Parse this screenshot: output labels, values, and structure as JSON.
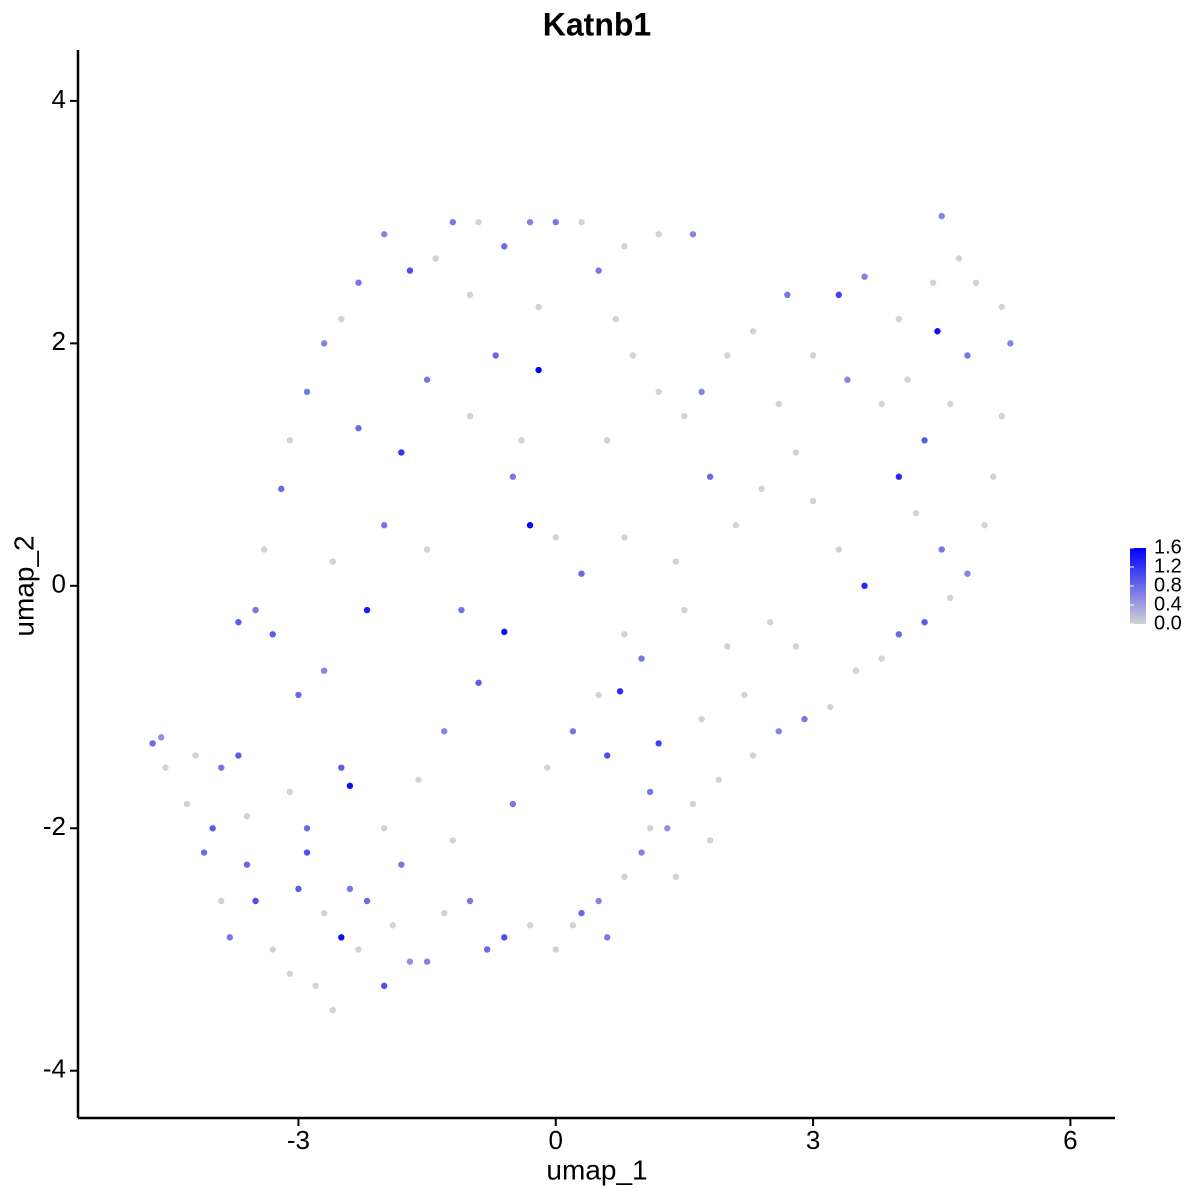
{
  "chart_data": {
    "type": "scatter",
    "title": "Katnb1",
    "x_label": "umap_1",
    "y_label": "umap_2",
    "xlim": [
      -5.57,
      6.52
    ],
    "ylim": [
      -4.39,
      4.42
    ],
    "xticks": [
      -3,
      0,
      3,
      6
    ],
    "yticks": [
      -4,
      -2,
      0,
      2,
      4
    ],
    "colors": [
      "#d3d3d3",
      "#0000ff"
    ],
    "clim": [
      0,
      1.6
    ],
    "cticks": [
      {
        "value": 0,
        "label": "0.0"
      },
      {
        "value": 0.4,
        "label": "0.4"
      },
      {
        "value": 0.8,
        "label": "0.8"
      },
      {
        "value": 1.2,
        "label": "1.2"
      },
      {
        "value": 1.6,
        "label": "1.6"
      }
    ],
    "x": [
      -4.7,
      -4.6,
      -4.55,
      -4.3,
      -4.1,
      -4.0,
      -3.9,
      -3.7,
      -3.6,
      -3.8,
      -3.5,
      -3.3,
      -3.1,
      -3.0,
      -2.9,
      -2.8,
      -2.6,
      -2.5,
      -2.4,
      -2.3,
      -2.2,
      -2.0,
      -1.9,
      -1.8,
      -1.5,
      -1.3,
      -1.0,
      -0.8,
      -0.6,
      -0.3,
      0.0,
      0.2,
      0.3,
      0.5,
      0.6,
      0.8,
      1.0,
      1.1,
      1.3,
      1.6,
      1.9,
      2.3,
      2.6,
      2.9,
      3.2,
      3.5,
      3.8,
      4.0,
      4.3,
      4.6,
      4.8,
      5.0,
      5.1,
      5.2,
      5.3,
      5.2,
      4.9,
      4.7,
      4.5,
      4.4,
      4.45,
      4.0,
      3.6,
      3.3,
      2.7,
      2.3,
      2.0,
      1.7,
      1.5,
      1.2,
      0.9,
      0.7,
      0.5,
      0.8,
      1.2,
      1.6,
      0.3,
      0.0,
      -0.3,
      -0.6,
      -0.9,
      -1.2,
      -1.4,
      -1.7,
      -2.0,
      -2.3,
      -2.5,
      -2.7,
      -2.9,
      -3.1,
      -3.2,
      -3.4,
      -3.5,
      -3.7,
      -3.3,
      -3.0,
      -2.7,
      -2.5,
      -2.4,
      -2.2,
      -2.0,
      -1.8,
      -1.5,
      -1.0,
      -0.7,
      -0.4,
      -0.2,
      -0.3,
      -0.6,
      -0.9,
      -1.3,
      -1.6,
      -2.0,
      -1.2,
      -0.5,
      -0.1,
      0.2,
      0.5,
      0.8,
      1.0,
      1.1,
      0.75,
      1.2,
      0.6,
      0.3,
      0.0,
      -0.5,
      0.8,
      1.4,
      1.8,
      2.1,
      2.4,
      2.8,
      3.0,
      3.3,
      2.5,
      2.0,
      1.5,
      2.2,
      1.7,
      2.8,
      3.6,
      4.0,
      4.3,
      3.8,
      3.4,
      4.6,
      4.8,
      4.2,
      4.5,
      3.0,
      2.6,
      4.1,
      1.8,
      1.4,
      -1.7,
      -2.7,
      -3.6,
      -3.9,
      -4.2,
      -1.1,
      -1.5,
      -2.3,
      -2.6,
      -1.0,
      -0.2,
      0.6,
      -3.1,
      -2.9
    ],
    "y": [
      -1.3,
      -1.25,
      -1.5,
      -1.8,
      -2.2,
      -2.0,
      -1.5,
      -1.4,
      -2.3,
      -2.9,
      -2.6,
      -3.0,
      -3.2,
      -2.5,
      -2.2,
      -3.3,
      -3.5,
      -2.9,
      -2.5,
      -3.0,
      -2.6,
      -3.3,
      -2.8,
      -2.3,
      -3.1,
      -2.7,
      -2.6,
      -3.0,
      -2.9,
      -2.8,
      -3.0,
      -2.8,
      -2.7,
      -2.6,
      -2.9,
      -2.4,
      -2.2,
      -2.0,
      -2.0,
      -1.8,
      -1.6,
      -1.4,
      -1.2,
      -1.1,
      -1.0,
      -0.7,
      -0.6,
      -0.4,
      -0.3,
      -0.1,
      0.1,
      0.5,
      0.9,
      1.4,
      2.0,
      2.3,
      2.5,
      2.7,
      3.05,
      2.5,
      2.1,
      2.2,
      2.55,
      2.4,
      2.4,
      2.1,
      1.9,
      1.6,
      1.4,
      1.6,
      1.9,
      2.2,
      2.6,
      2.8,
      2.9,
      2.9,
      3.0,
      3.0,
      3.0,
      2.8,
      3.0,
      3.0,
      2.7,
      2.6,
      2.9,
      2.5,
      2.2,
      2.0,
      1.6,
      1.2,
      0.8,
      0.3,
      -0.2,
      -0.3,
      -0.4,
      -0.9,
      -0.7,
      -1.5,
      -1.65,
      -0.2,
      0.5,
      1.1,
      1.7,
      1.4,
      1.9,
      1.2,
      1.78,
      0.5,
      -0.38,
      -0.8,
      -1.2,
      -1.6,
      -2.0,
      -2.1,
      -1.8,
      -1.5,
      -1.2,
      -0.9,
      -0.4,
      -0.6,
      -1.7,
      -0.87,
      -1.3,
      -1.4,
      0.1,
      0.4,
      0.9,
      0.4,
      0.2,
      0.9,
      0.5,
      0.8,
      1.1,
      0.7,
      0.3,
      -0.3,
      -0.5,
      -0.2,
      -0.9,
      -1.1,
      -0.5,
      0.0,
      0.9,
      1.2,
      1.5,
      1.7,
      1.5,
      1.9,
      0.6,
      0.3,
      1.9,
      1.5,
      1.7,
      -2.1,
      -2.4,
      -3.1,
      -2.7,
      -1.9,
      -2.6,
      -1.4,
      -0.2,
      0.3,
      1.3,
      0.2,
      2.4,
      2.3,
      1.2,
      -1.7,
      -2.0
    ],
    "values": [
      0.8,
      0.5,
      0,
      0,
      0.8,
      0.9,
      0.7,
      0.9,
      0.8,
      0.7,
      1.0,
      0,
      0,
      0.9,
      1.0,
      0,
      0,
      1.5,
      0.7,
      0,
      0.8,
      1.0,
      0,
      0.7,
      0.6,
      0,
      0.7,
      0.8,
      1.0,
      0,
      0,
      0,
      0.8,
      0.6,
      0.7,
      0,
      0.6,
      0,
      0.5,
      0,
      0,
      0,
      0.6,
      0.7,
      0,
      0,
      0,
      0.8,
      0.9,
      0,
      0.6,
      0,
      0,
      0,
      0.6,
      0,
      0,
      0,
      0.6,
      0,
      1.5,
      0,
      0.6,
      1.1,
      0.7,
      0,
      0,
      0.6,
      0,
      0,
      0,
      0,
      0.7,
      0,
      0,
      0.6,
      0,
      0.7,
      0.6,
      0.8,
      0,
      0.7,
      0,
      1.0,
      0.6,
      0.7,
      0,
      0.6,
      0.7,
      0,
      0.8,
      0,
      0.7,
      0.9,
      0.9,
      0.8,
      0.6,
      0.9,
      1.5,
      1.4,
      0.7,
      1.2,
      0.7,
      0,
      0.8,
      0,
      1.6,
      1.6,
      1.5,
      0.9,
      0.6,
      0,
      0,
      0,
      0.7,
      0,
      0.7,
      0,
      0,
      0.7,
      0.7,
      1.3,
      1.1,
      1.0,
      0.8,
      0,
      0.7,
      0,
      0,
      0.8,
      0,
      0,
      0,
      0,
      0,
      0,
      0,
      0,
      0,
      0,
      0,
      1.3,
      1.3,
      0.9,
      0,
      0.6,
      0,
      0.7,
      0,
      0.7,
      0,
      0,
      0,
      0,
      0,
      0.5,
      0,
      0,
      0,
      0,
      0.7,
      0,
      0.8,
      0,
      0,
      0,
      0,
      0,
      0.8
    ]
  }
}
